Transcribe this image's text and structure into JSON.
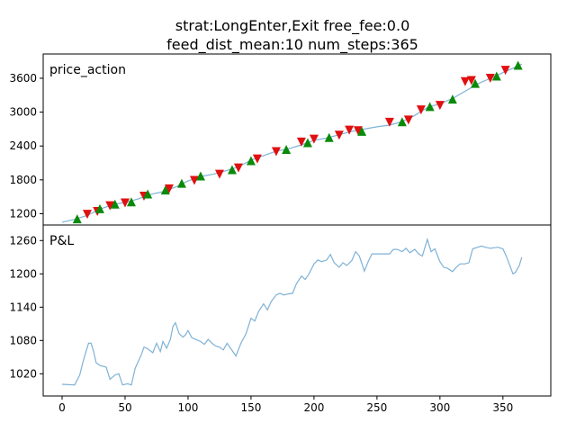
{
  "title_line1": "strat:LongEnter,Exit  free_fee:0.0",
  "title_line2": "feed_dist_mean:10  num_steps:365",
  "colors": {
    "line": "#7fb2d6",
    "buy_marker": "#0a8a0a",
    "sell_marker": "#e01010",
    "axis": "#000000"
  },
  "chart_data": [
    {
      "type": "line",
      "panel_label": "price_action",
      "xlim": [
        -15,
        388
      ],
      "ylim": [
        1000,
        4030
      ],
      "yticks": [
        1200,
        1800,
        2400,
        3000,
        3600
      ],
      "series": [
        {
          "x": [
            0,
            10,
            20,
            30,
            40,
            50,
            60,
            70,
            80,
            90,
            100,
            110,
            120,
            130,
            140,
            150,
            160,
            170,
            180,
            190,
            200,
            210,
            220,
            230,
            240,
            250,
            260,
            270,
            280,
            290,
            300,
            310,
            320,
            330,
            340,
            350,
            365
          ],
          "values": [
            1050,
            1100,
            1170,
            1280,
            1360,
            1400,
            1460,
            1540,
            1590,
            1670,
            1780,
            1860,
            1900,
            1960,
            2030,
            2150,
            2230,
            2310,
            2350,
            2420,
            2500,
            2540,
            2600,
            2660,
            2700,
            2740,
            2770,
            2830,
            2940,
            3080,
            3150,
            3240,
            3370,
            3500,
            3600,
            3700,
            3850
          ]
        }
      ],
      "buy_markers": {
        "x": [
          12,
          30,
          42,
          55,
          68,
          82,
          95,
          110,
          135,
          150,
          178,
          195,
          212,
          238,
          270,
          292,
          310,
          328,
          345,
          362
        ],
        "y": [
          1110,
          1290,
          1370,
          1410,
          1550,
          1620,
          1740,
          1870,
          1980,
          2140,
          2340,
          2460,
          2550,
          2660,
          2830,
          3100,
          3230,
          3510,
          3640,
          3830
        ]
      },
      "sell_markers": {
        "x": [
          20,
          28,
          38,
          50,
          65,
          85,
          105,
          125,
          140,
          155,
          170,
          190,
          200,
          220,
          228,
          235,
          260,
          275,
          285,
          300,
          320,
          325,
          340,
          352
        ],
        "y": [
          1190,
          1240,
          1340,
          1390,
          1510,
          1640,
          1790,
          1900,
          2010,
          2170,
          2300,
          2470,
          2520,
          2590,
          2680,
          2670,
          2820,
          2860,
          3040,
          3120,
          3540,
          3560,
          3600,
          3740
        ]
      }
    },
    {
      "type": "line",
      "panel_label": "P&L",
      "xlim": [
        -15,
        388
      ],
      "ylim": [
        980,
        1288
      ],
      "yticks": [
        1020,
        1080,
        1140,
        1200,
        1260
      ],
      "xticks": [
        0,
        50,
        100,
        150,
        200,
        250,
        300,
        350
      ],
      "series": [
        {
          "x": [
            0,
            10,
            14,
            17,
            19,
            21,
            23,
            25,
            27,
            30,
            35,
            38,
            42,
            45,
            48,
            52,
            55,
            58,
            60,
            63,
            65,
            68,
            72,
            75,
            78,
            80,
            83,
            86,
            88,
            90,
            93,
            96,
            98,
            100,
            103,
            106,
            110,
            113,
            116,
            119,
            122,
            125,
            128,
            131,
            135,
            138,
            142,
            146,
            150,
            153,
            156,
            160,
            163,
            166,
            170,
            173,
            176,
            180,
            183,
            186,
            190,
            193,
            196,
            200,
            203,
            206,
            210,
            213,
            216,
            220,
            223,
            226,
            230,
            233,
            236,
            240,
            243,
            246,
            250,
            253,
            256,
            260,
            263,
            266,
            270,
            273,
            276,
            280,
            283,
            286,
            290,
            293,
            296,
            300,
            303,
            306,
            310,
            313,
            316,
            320,
            323,
            326,
            330,
            333,
            336,
            340,
            343,
            346,
            350,
            353,
            355,
            358,
            360,
            363,
            365
          ],
          "values": [
            1001,
            1000,
            1018,
            1045,
            1060,
            1075,
            1075,
            1060,
            1040,
            1035,
            1032,
            1010,
            1018,
            1020,
            1000,
            1002,
            1000,
            1030,
            1040,
            1055,
            1068,
            1065,
            1058,
            1075,
            1060,
            1078,
            1066,
            1082,
            1105,
            1112,
            1092,
            1086,
            1090,
            1098,
            1085,
            1082,
            1078,
            1073,
            1082,
            1075,
            1070,
            1068,
            1063,
            1075,
            1062,
            1052,
            1075,
            1092,
            1120,
            1115,
            1132,
            1146,
            1135,
            1150,
            1162,
            1165,
            1162,
            1164,
            1165,
            1182,
            1196,
            1190,
            1200,
            1218,
            1225,
            1222,
            1225,
            1235,
            1220,
            1212,
            1220,
            1215,
            1224,
            1240,
            1232,
            1205,
            1222,
            1236,
            1236,
            1236,
            1236,
            1236,
            1244,
            1244,
            1240,
            1246,
            1238,
            1244,
            1236,
            1232,
            1262,
            1240,
            1245,
            1222,
            1212,
            1210,
            1204,
            1212,
            1218,
            1218,
            1220,
            1245,
            1248,
            1250,
            1248,
            1246,
            1247,
            1248,
            1245,
            1230,
            1218,
            1200,
            1203,
            1215,
            1230
          ]
        }
      ]
    }
  ]
}
